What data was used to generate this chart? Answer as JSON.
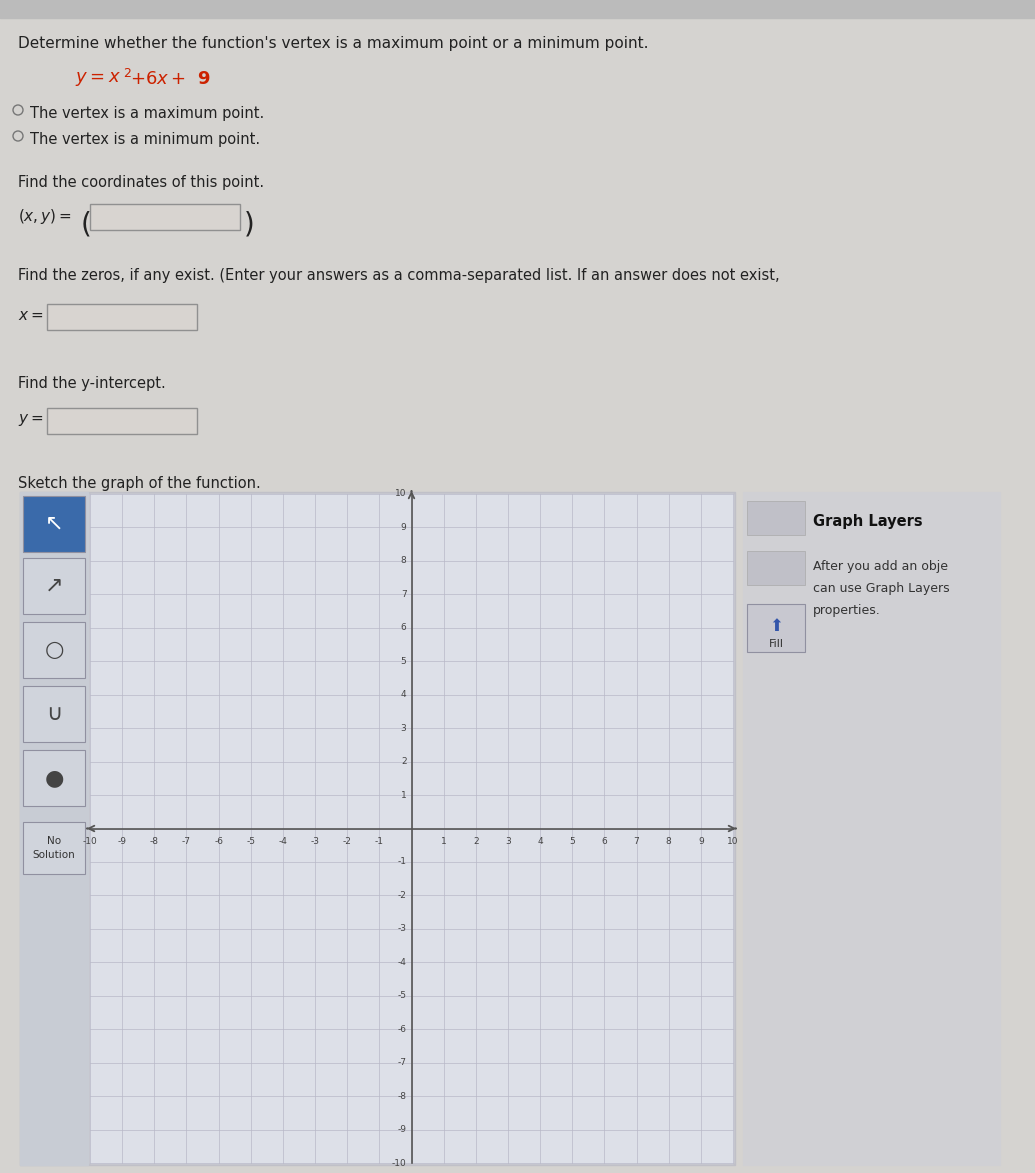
{
  "title_text": "Determine whether the function's vertex is a maximum point or a minimum point.",
  "option1": "The vertex is a maximum point.",
  "option2": "The vertex is a minimum point.",
  "coord_label": "Find the coordinates of this point.",
  "zeros_label": "Find the zeros, if any exist. (Enter your answers as a comma-separated list. If an answer does not exist,",
  "yint_label": "Find the y-intercept.",
  "sketch_label": "Sketch the graph of the function.",
  "graph_layers_title": "Graph Layers",
  "graph_layers_text1": "After you add an obje",
  "graph_layers_text2": "can use Graph Layers",
  "graph_layers_text3": "properties.",
  "fill_label": "Fill",
  "no_solution_label": "No\nSolution",
  "bg_color": "#d5d3d0",
  "page_content_bg": "#e0dedd",
  "graph_inner_bg": "#dde0e8",
  "graph_border_bg": "#c8c8cc",
  "toolbar_bg_top": "#3a6aaa",
  "toolbar_btn_bg": "#c8ccd4",
  "toolbar_btn_border": "#9090a0",
  "input_box_bg": "#d8d4d0",
  "input_box_border": "#909090",
  "side_panel_bg": "#d0d0d4",
  "fill_btn_bg": "#c8c8cc",
  "axis_tick_color": "#444444",
  "grid_color": "#b8b8c8",
  "axis_color": "#555555",
  "eq_color": "#cc2200",
  "text_color": "#222222"
}
